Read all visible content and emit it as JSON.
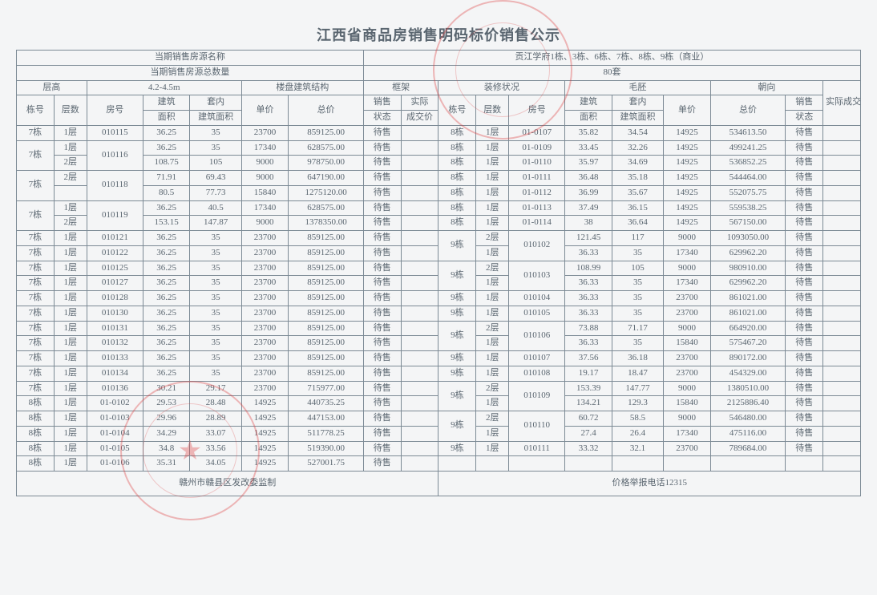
{
  "title": "江西省商品房销售明码标价销售公示",
  "header": {
    "row1_left": "当期销售房源名称",
    "row1_right": "贡江学府1栋、3栋、6栋、7栋、8栋、9栋（商业）",
    "row2_left": "当期销售房源总数量",
    "row2_right": "80套",
    "floor_height_lbl": "层高",
    "floor_height_val": "4.2-4.5m",
    "structure_lbl": "楼盘建筑结构",
    "structure_val": "框架",
    "decor_lbl": "装修状况",
    "decor_val": "毛胚",
    "orient_lbl": "朝向",
    "col_bldg": "栋号",
    "col_floor": "层数",
    "col_room": "房号",
    "col_area": "建筑面积",
    "col_narea": "套内建筑面积",
    "col_price": "单价",
    "col_total": "总价",
    "col_status": "销售状态",
    "col_deal": "实际成交价"
  },
  "left_rows": [
    {
      "b": "7栋",
      "f": "1层",
      "r": "010115",
      "a": "36.25",
      "n": "35",
      "p": "23700",
      "t": "859125.00",
      "s": "待售",
      "d": ""
    },
    {
      "b": "7栋",
      "f": "1层",
      "r": "010116",
      "a": "36.25",
      "n": "35",
      "p": "17340",
      "t": "628575.00",
      "s": "待售",
      "d": "",
      "bspan": 2,
      "rspan": 2
    },
    {
      "b": "",
      "f": "2层",
      "r": "",
      "a": "108.75",
      "n": "105",
      "p": "9000",
      "t": "978750.00",
      "s": "待售",
      "d": ""
    },
    {
      "b": "7栋",
      "f": "2层",
      "r": "010118",
      "a": "71.91",
      "n": "69.43",
      "p": "9000",
      "t": "647190.00",
      "s": "待售",
      "d": "",
      "bspan": 2,
      "rspan": 2
    },
    {
      "b": "",
      "f": "",
      "r": "",
      "a": "80.5",
      "n": "77.73",
      "p": "15840",
      "t": "1275120.00",
      "s": "待售",
      "d": ""
    },
    {
      "b": "7栋",
      "f": "1层",
      "r": "010119",
      "a": "36.25",
      "n": "40.5",
      "p": "17340",
      "t": "628575.00",
      "s": "待售",
      "d": "",
      "bspan": 2,
      "rspan": 2
    },
    {
      "b": "",
      "f": "2层",
      "r": "",
      "a": "153.15",
      "n": "147.87",
      "p": "9000",
      "t": "1378350.00",
      "s": "待售",
      "d": ""
    },
    {
      "b": "7栋",
      "f": "1层",
      "r": "010121",
      "a": "36.25",
      "n": "35",
      "p": "23700",
      "t": "859125.00",
      "s": "待售",
      "d": ""
    },
    {
      "b": "7栋",
      "f": "1层",
      "r": "010122",
      "a": "36.25",
      "n": "35",
      "p": "23700",
      "t": "859125.00",
      "s": "待售",
      "d": ""
    },
    {
      "b": "7栋",
      "f": "1层",
      "r": "010125",
      "a": "36.25",
      "n": "35",
      "p": "23700",
      "t": "859125.00",
      "s": "待售",
      "d": ""
    },
    {
      "b": "7栋",
      "f": "1层",
      "r": "010127",
      "a": "36.25",
      "n": "35",
      "p": "23700",
      "t": "859125.00",
      "s": "待售",
      "d": ""
    },
    {
      "b": "7栋",
      "f": "1层",
      "r": "010128",
      "a": "36.25",
      "n": "35",
      "p": "23700",
      "t": "859125.00",
      "s": "待售",
      "d": ""
    },
    {
      "b": "7栋",
      "f": "1层",
      "r": "010130",
      "a": "36.25",
      "n": "35",
      "p": "23700",
      "t": "859125.00",
      "s": "待售",
      "d": ""
    },
    {
      "b": "7栋",
      "f": "1层",
      "r": "010131",
      "a": "36.25",
      "n": "35",
      "p": "23700",
      "t": "859125.00",
      "s": "待售",
      "d": ""
    },
    {
      "b": "7栋",
      "f": "1层",
      "r": "010132",
      "a": "36.25",
      "n": "35",
      "p": "23700",
      "t": "859125.00",
      "s": "待售",
      "d": ""
    },
    {
      "b": "7栋",
      "f": "1层",
      "r": "010133",
      "a": "36.25",
      "n": "35",
      "p": "23700",
      "t": "859125.00",
      "s": "待售",
      "d": ""
    },
    {
      "b": "7栋",
      "f": "1层",
      "r": "010134",
      "a": "36.25",
      "n": "35",
      "p": "23700",
      "t": "859125.00",
      "s": "待售",
      "d": ""
    },
    {
      "b": "7栋",
      "f": "1层",
      "r": "010136",
      "a": "30.21",
      "n": "29.17",
      "p": "23700",
      "t": "715977.00",
      "s": "待售",
      "d": ""
    },
    {
      "b": "8栋",
      "f": "1层",
      "r": "01-0102",
      "a": "29.53",
      "n": "28.48",
      "p": "14925",
      "t": "440735.25",
      "s": "待售",
      "d": ""
    },
    {
      "b": "8栋",
      "f": "1层",
      "r": "01-0103",
      "a": "29.96",
      "n": "28.89",
      "p": "14925",
      "t": "447153.00",
      "s": "待售",
      "d": ""
    },
    {
      "b": "8栋",
      "f": "1层",
      "r": "01-0104",
      "a": "34.29",
      "n": "33.07",
      "p": "14925",
      "t": "511778.25",
      "s": "待售",
      "d": ""
    },
    {
      "b": "8栋",
      "f": "1层",
      "r": "01-0105",
      "a": "34.8",
      "n": "33.56",
      "p": "14925",
      "t": "519390.00",
      "s": "待售",
      "d": ""
    },
    {
      "b": "8栋",
      "f": "1层",
      "r": "01-0106",
      "a": "35.31",
      "n": "34.05",
      "p": "14925",
      "t": "527001.75",
      "s": "待售",
      "d": ""
    }
  ],
  "right_rows": [
    {
      "b": "8栋",
      "f": "1层",
      "r": "01-0107",
      "a": "35.82",
      "n": "34.54",
      "p": "14925",
      "t": "534613.50",
      "s": "待售",
      "d": ""
    },
    {
      "b": "8栋",
      "f": "1层",
      "r": "01-0109",
      "a": "33.45",
      "n": "32.26",
      "p": "14925",
      "t": "499241.25",
      "s": "待售",
      "d": ""
    },
    {
      "b": "8栋",
      "f": "1层",
      "r": "01-0110",
      "a": "35.97",
      "n": "34.69",
      "p": "14925",
      "t": "536852.25",
      "s": "待售",
      "d": ""
    },
    {
      "b": "8栋",
      "f": "1层",
      "r": "01-0111",
      "a": "36.48",
      "n": "35.18",
      "p": "14925",
      "t": "544464.00",
      "s": "待售",
      "d": ""
    },
    {
      "b": "8栋",
      "f": "1层",
      "r": "01-0112",
      "a": "36.99",
      "n": "35.67",
      "p": "14925",
      "t": "552075.75",
      "s": "待售",
      "d": ""
    },
    {
      "b": "8栋",
      "f": "1层",
      "r": "01-0113",
      "a": "37.49",
      "n": "36.15",
      "p": "14925",
      "t": "559538.25",
      "s": "待售",
      "d": ""
    },
    {
      "b": "8栋",
      "f": "1层",
      "r": "01-0114",
      "a": "38",
      "n": "36.64",
      "p": "14925",
      "t": "567150.00",
      "s": "待售",
      "d": ""
    },
    {
      "b": "9栋",
      "f": "2层",
      "r": "010102",
      "a": "121.45",
      "n": "117",
      "p": "9000",
      "t": "1093050.00",
      "s": "待售",
      "d": "",
      "bspan": 2,
      "rspan": 2
    },
    {
      "b": "",
      "f": "1层",
      "r": "",
      "a": "36.33",
      "n": "35",
      "p": "17340",
      "t": "629962.20",
      "s": "待售",
      "d": ""
    },
    {
      "b": "9栋",
      "f": "2层",
      "r": "010103",
      "a": "108.99",
      "n": "105",
      "p": "9000",
      "t": "980910.00",
      "s": "待售",
      "d": "",
      "bspan": 2,
      "rspan": 2
    },
    {
      "b": "",
      "f": "1层",
      "r": "",
      "a": "36.33",
      "n": "35",
      "p": "17340",
      "t": "629962.20",
      "s": "待售",
      "d": ""
    },
    {
      "b": "9栋",
      "f": "1层",
      "r": "010104",
      "a": "36.33",
      "n": "35",
      "p": "23700",
      "t": "861021.00",
      "s": "待售",
      "d": ""
    },
    {
      "b": "9栋",
      "f": "1层",
      "r": "010105",
      "a": "36.33",
      "n": "35",
      "p": "23700",
      "t": "861021.00",
      "s": "待售",
      "d": ""
    },
    {
      "b": "9栋",
      "f": "2层",
      "r": "010106",
      "a": "73.88",
      "n": "71.17",
      "p": "9000",
      "t": "664920.00",
      "s": "待售",
      "d": "",
      "bspan": 2,
      "rspan": 2
    },
    {
      "b": "",
      "f": "1层",
      "r": "",
      "a": "36.33",
      "n": "35",
      "p": "15840",
      "t": "575467.20",
      "s": "待售",
      "d": ""
    },
    {
      "b": "9栋",
      "f": "1层",
      "r": "010107",
      "a": "37.56",
      "n": "36.18",
      "p": "23700",
      "t": "890172.00",
      "s": "待售",
      "d": ""
    },
    {
      "b": "9栋",
      "f": "1层",
      "r": "010108",
      "a": "19.17",
      "n": "18.47",
      "p": "23700",
      "t": "454329.00",
      "s": "待售",
      "d": ""
    },
    {
      "b": "9栋",
      "f": "2层",
      "r": "010109",
      "a": "153.39",
      "n": "147.77",
      "p": "9000",
      "t": "1380510.00",
      "s": "待售",
      "d": "",
      "bspan": 2,
      "rspan": 2
    },
    {
      "b": "",
      "f": "1层",
      "r": "",
      "a": "134.21",
      "n": "129.3",
      "p": "15840",
      "t": "2125886.40",
      "s": "待售",
      "d": ""
    },
    {
      "b": "9栋",
      "f": "2层",
      "r": "010110",
      "a": "60.72",
      "n": "58.5",
      "p": "9000",
      "t": "546480.00",
      "s": "待售",
      "d": "",
      "bspan": 2,
      "rspan": 2
    },
    {
      "b": "",
      "f": "1层",
      "r": "",
      "a": "27.4",
      "n": "26.4",
      "p": "17340",
      "t": "475116.00",
      "s": "待售",
      "d": ""
    },
    {
      "b": "9栋",
      "f": "1层",
      "r": "010111",
      "a": "33.32",
      "n": "32.1",
      "p": "23700",
      "t": "789684.00",
      "s": "待售",
      "d": ""
    },
    {
      "b": "",
      "f": "",
      "r": "",
      "a": "",
      "n": "",
      "p": "",
      "t": "",
      "s": "",
      "d": "",
      "empty": true
    }
  ],
  "footer": {
    "left": "赣州市赣县区发改委监制",
    "right": "价格举报电话12315"
  },
  "styling": {
    "border_color": "#7c8a95",
    "text_color": "#5a6670",
    "background_color": "#f4f5f6",
    "title_fontsize": 18,
    "body_fontsize": 11,
    "stamp_color": "rgba(220,60,60,0.35)"
  }
}
